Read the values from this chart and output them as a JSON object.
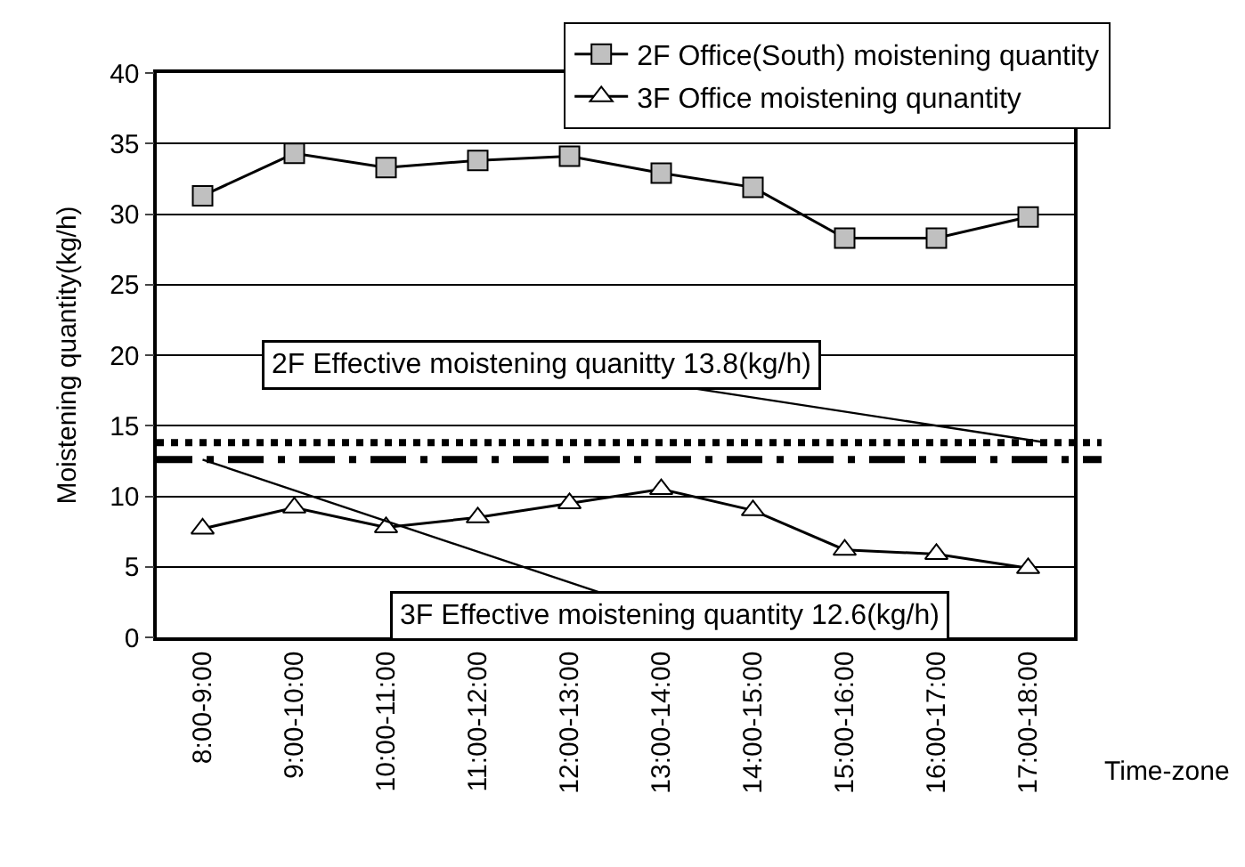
{
  "chart_data": {
    "type": "line",
    "ylabel": "Moistening quantity(kg/h)",
    "xlabel": "Time-zone",
    "categories": [
      "8:00-9:00",
      "9:00-10:00",
      "10:00-11:00",
      "11:00-12:00",
      "12:00-13:00",
      "13:00-14:00",
      "14:00-15:00",
      "15:00-16:00",
      "16:00-17:00",
      "17:00-18:00"
    ],
    "series": [
      {
        "name": "2F Office(South) moistening quantity",
        "color": "#c0c0c0",
        "marker": "square",
        "values": [
          31.3,
          34.3,
          33.3,
          33.8,
          34.1,
          32.9,
          31.9,
          28.3,
          28.3,
          29.8
        ]
      },
      {
        "name": "3F Office moistening qunantity",
        "color": "#ffffff",
        "marker": "triangle",
        "values": [
          7.7,
          9.2,
          7.8,
          8.5,
          9.5,
          10.5,
          9.0,
          6.2,
          5.9,
          4.9
        ]
      }
    ],
    "ref_lines": [
      {
        "axis": "y",
        "value": 13.8,
        "label": "2F Effective moistening quanitty 13.8(kg/h)",
        "line_style": "dotted",
        "color": "#000000"
      },
      {
        "axis": "y",
        "value": 12.6,
        "label": "3F Effective moistening quantity 12.6(kg/h)",
        "line_style": "dashed",
        "color": "#000000"
      }
    ],
    "ylim": [
      0,
      40
    ],
    "yticks": [
      0,
      5,
      10,
      15,
      20,
      25,
      30,
      35,
      40
    ],
    "grid": "y",
    "legend": "top right"
  }
}
